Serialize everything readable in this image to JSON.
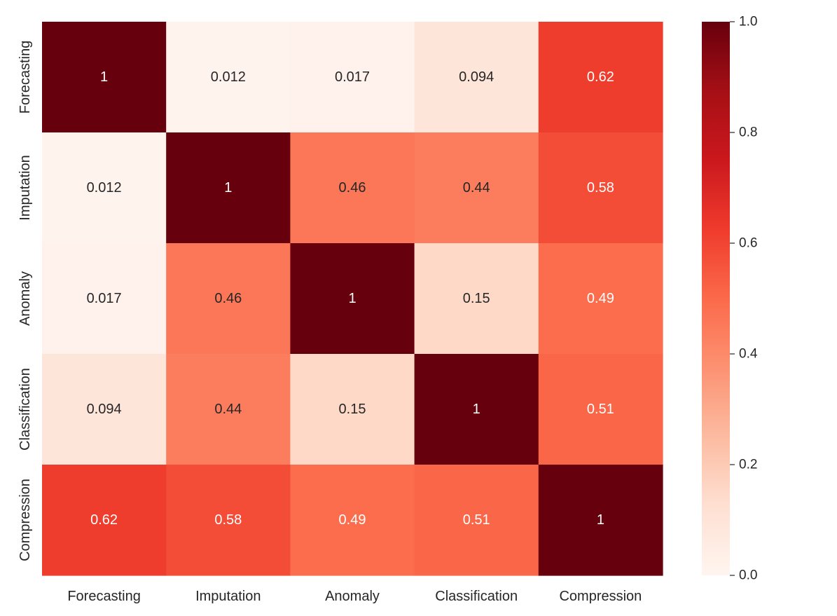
{
  "chart_data": {
    "type": "heatmap",
    "title": "",
    "xlabel": "",
    "ylabel": "",
    "row_labels": [
      "Forecasting",
      "Imputation",
      "Anomaly",
      "Classification",
      "Compression"
    ],
    "col_labels": [
      "Forecasting",
      "Imputation",
      "Anomaly",
      "Classification",
      "Compression"
    ],
    "values": [
      [
        1,
        0.012,
        0.017,
        0.094,
        0.62
      ],
      [
        0.012,
        1,
        0.46,
        0.44,
        0.58
      ],
      [
        0.017,
        0.46,
        1,
        0.15,
        0.49
      ],
      [
        0.094,
        0.44,
        0.15,
        1,
        0.51
      ],
      [
        0.62,
        0.58,
        0.49,
        0.51,
        1
      ]
    ],
    "annotations": [
      [
        "1",
        "0.012",
        "0.017",
        "0.094",
        "0.62"
      ],
      [
        "0.012",
        "1",
        "0.46",
        "0.44",
        "0.58"
      ],
      [
        "0.017",
        "0.46",
        "1",
        "0.15",
        "0.49"
      ],
      [
        "0.094",
        "0.44",
        "0.15",
        "1",
        "0.51"
      ],
      [
        "0.62",
        "0.58",
        "0.49",
        "0.51",
        "1"
      ]
    ],
    "colormap": "Reds",
    "vmin": 0.0,
    "vmax": 1.0,
    "colorbar_ticks": [
      0.0,
      0.2,
      0.4,
      0.6,
      0.8,
      1.0
    ],
    "colorbar_tick_labels": [
      "0.0",
      "0.2",
      "0.4",
      "0.6",
      "0.8",
      "1.0"
    ],
    "colormap_stops": [
      "#fff5f0",
      "#fee0d2",
      "#fcbba1",
      "#fc9272",
      "#fb6a4a",
      "#ef3b2c",
      "#cb181d",
      "#a50f15",
      "#67000d"
    ],
    "text_color_dark": "#262626",
    "text_color_light": "#ffffff"
  }
}
